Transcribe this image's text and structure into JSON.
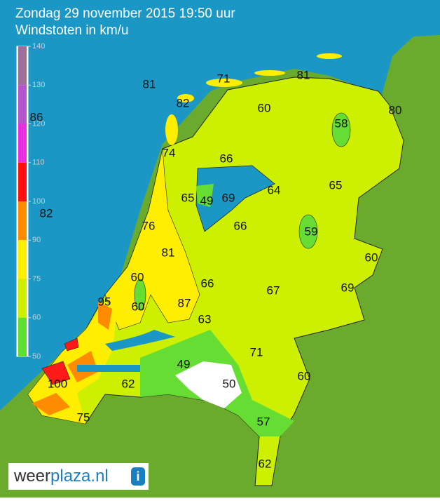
{
  "header": {
    "title": "Zondag 29 november 2015 19:50 uur",
    "subtitle": "Windstoten in km/u"
  },
  "legend": {
    "ticks": [
      140,
      130,
      120,
      110,
      100,
      90,
      75,
      60,
      50
    ],
    "colors": [
      "#a06e9a",
      "#b455cf",
      "#e82fe0",
      "#ff1010",
      "#ff8c00",
      "#ffee00",
      "#ccf000",
      "#5ee030"
    ]
  },
  "stations": [
    81,
    71,
    81,
    82,
    60,
    80,
    58,
    86,
    74,
    66,
    64,
    65,
    65,
    49,
    69,
    82,
    76,
    66,
    59,
    81,
    60,
    60,
    66,
    67,
    69,
    95,
    60,
    87,
    63,
    71,
    49,
    60,
    100,
    62,
    50,
    57,
    75,
    62
  ],
  "logo": {
    "part1": "weer",
    "part2": "plaza.nl",
    "icon": "i"
  }
}
